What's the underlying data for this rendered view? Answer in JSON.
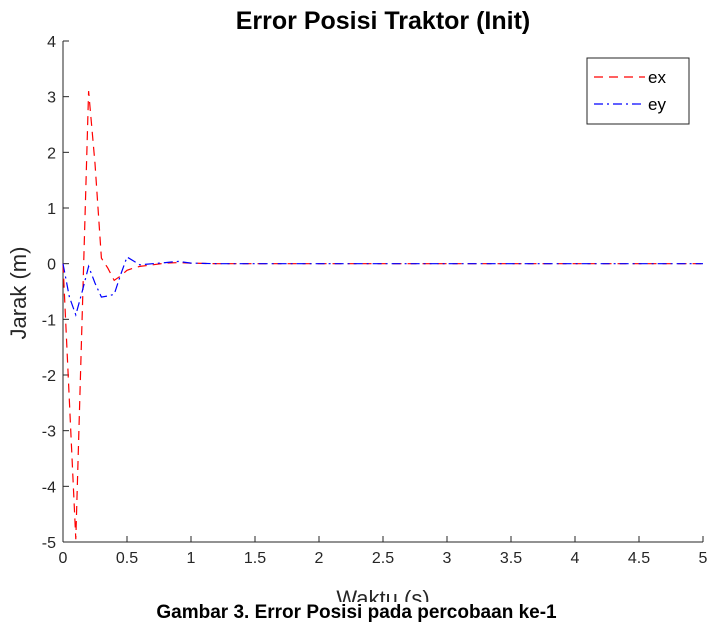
{
  "caption": "Gambar 3. Error Posisi pada percobaan ke-1",
  "chart_data": {
    "type": "line",
    "title": "Error Posisi Traktor (Init)",
    "xlabel": "Waktu (s)",
    "ylabel": "Jarak (m)",
    "xlim": [
      0,
      5
    ],
    "ylim": [
      -5,
      4
    ],
    "xticks": [
      0,
      0.5,
      1,
      1.5,
      2,
      2.5,
      3,
      3.5,
      4,
      4.5,
      5
    ],
    "xtick_labels": [
      "0",
      "0.5",
      "1",
      "1.5",
      "2",
      "2.5",
      "3",
      "3.5",
      "4",
      "4.5",
      "5"
    ],
    "yticks": [
      -5,
      -4,
      -3,
      -2,
      -1,
      0,
      1,
      2,
      3,
      4
    ],
    "ytick_labels": [
      "-5",
      "-4",
      "-3",
      "-2",
      "-1",
      "0",
      "1",
      "2",
      "3",
      "4"
    ],
    "grid": false,
    "legend_position": "top-right",
    "series": [
      {
        "name": "ex",
        "color": "#ff0000",
        "dash": "dashed",
        "x": [
          0,
          0.1,
          0.2,
          0.25,
          0.3,
          0.35,
          0.4,
          0.45,
          0.5,
          0.55,
          0.6,
          0.7,
          0.8,
          0.9,
          1.0,
          1.2,
          1.5,
          2,
          3,
          4,
          5
        ],
        "y": [
          0,
          -4.95,
          3.1,
          1.8,
          0.1,
          -0.08,
          -0.3,
          -0.22,
          -0.12,
          -0.08,
          -0.05,
          -0.02,
          0.01,
          0.02,
          0.01,
          0,
          0,
          0,
          0,
          0,
          0
        ]
      },
      {
        "name": "ey",
        "color": "#0000ff",
        "dash": "dashdot",
        "x": [
          0,
          0.05,
          0.1,
          0.15,
          0.2,
          0.25,
          0.3,
          0.35,
          0.4,
          0.45,
          0.5,
          0.55,
          0.6,
          0.7,
          0.8,
          0.9,
          1.0,
          1.2,
          1.5,
          2,
          3,
          4,
          5
        ],
        "y": [
          0,
          -0.6,
          -0.92,
          -0.5,
          -0.05,
          -0.35,
          -0.6,
          -0.58,
          -0.55,
          -0.2,
          0.12,
          0.05,
          -0.02,
          0.0,
          0.02,
          0.04,
          0.01,
          0,
          0,
          0,
          0,
          0,
          0
        ]
      }
    ]
  }
}
